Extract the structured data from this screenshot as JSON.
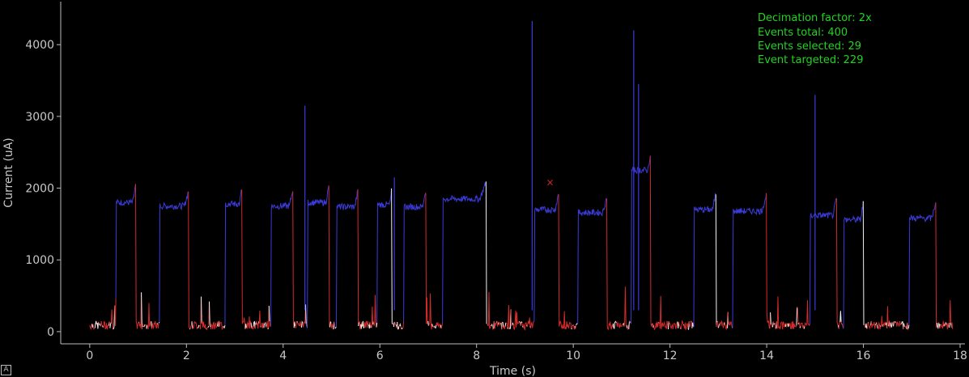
{
  "chart_data": {
    "type": "line",
    "title": "",
    "xlabel": "Time (s)",
    "ylabel": "Current (uA)",
    "xlim": [
      -0.6,
      18.1
    ],
    "ylim": [
      -170,
      4600
    ],
    "xticks": [
      "0",
      "2",
      "4",
      "6",
      "8",
      "10",
      "12",
      "14",
      "16",
      "18"
    ],
    "yticks": [
      "0",
      "1000",
      "2000",
      "3000",
      "4000"
    ],
    "grid": false,
    "annotations": [
      "Decimation factor: 2x",
      "Events total: 400",
      "Events selected: 29",
      "Event targeted: 229"
    ],
    "marker": {
      "x": 9.52,
      "y": 2080,
      "symbol": "×"
    },
    "colors": {
      "selected": "#3b3bd8",
      "baseline": "#d32a2a",
      "other": "#f2f2f2",
      "annotation": "#22d322",
      "marker": "#d32a2a"
    },
    "series": [
      {
        "color": "selected",
        "approximate_levels": [
          {
            "x": [
              0.55,
              0.95
            ],
            "y": 1800
          },
          {
            "x": [
              1.45,
              2.05
            ],
            "y": 1750
          },
          {
            "x": [
              2.8,
              3.15
            ],
            "y": 1780
          },
          {
            "x": [
              3.75,
              4.2
            ],
            "y": 1750
          },
          {
            "x": [
              4.5,
              4.95
            ],
            "y": 1800
          },
          {
            "x": [
              5.1,
              5.55
            ],
            "y": 1740
          },
          {
            "x": [
              5.95,
              6.25
            ],
            "y": 1770
          },
          {
            "x": [
              6.5,
              6.95
            ],
            "y": 1740
          },
          {
            "x": [
              7.3,
              8.2
            ],
            "y": 1850
          },
          {
            "x": [
              9.2,
              9.7
            ],
            "y": 1700
          },
          {
            "x": [
              10.1,
              10.7
            ],
            "y": 1660
          },
          {
            "x": [
              11.2,
              11.6
            ],
            "y": 2250
          },
          {
            "x": [
              12.5,
              12.95
            ],
            "y": 1700
          },
          {
            "x": [
              13.3,
              14.0
            ],
            "y": 1680
          },
          {
            "x": [
              14.9,
              15.45
            ],
            "y": 1620
          },
          {
            "x": [
              15.6,
              16.0
            ],
            "y": 1560
          },
          {
            "x": [
              16.95,
              17.5
            ],
            "y": 1580
          }
        ],
        "spikes": [
          {
            "x": 4.45,
            "y": 3150
          },
          {
            "x": 9.15,
            "y": 4330
          },
          {
            "x": 11.25,
            "y": 4200
          },
          {
            "x": 11.35,
            "y": 3450
          },
          {
            "x": 15.0,
            "y": 3300
          },
          {
            "x": 6.3,
            "y": 2150
          }
        ]
      },
      {
        "color": "baseline",
        "approximate_level": 90
      }
    ]
  }
}
